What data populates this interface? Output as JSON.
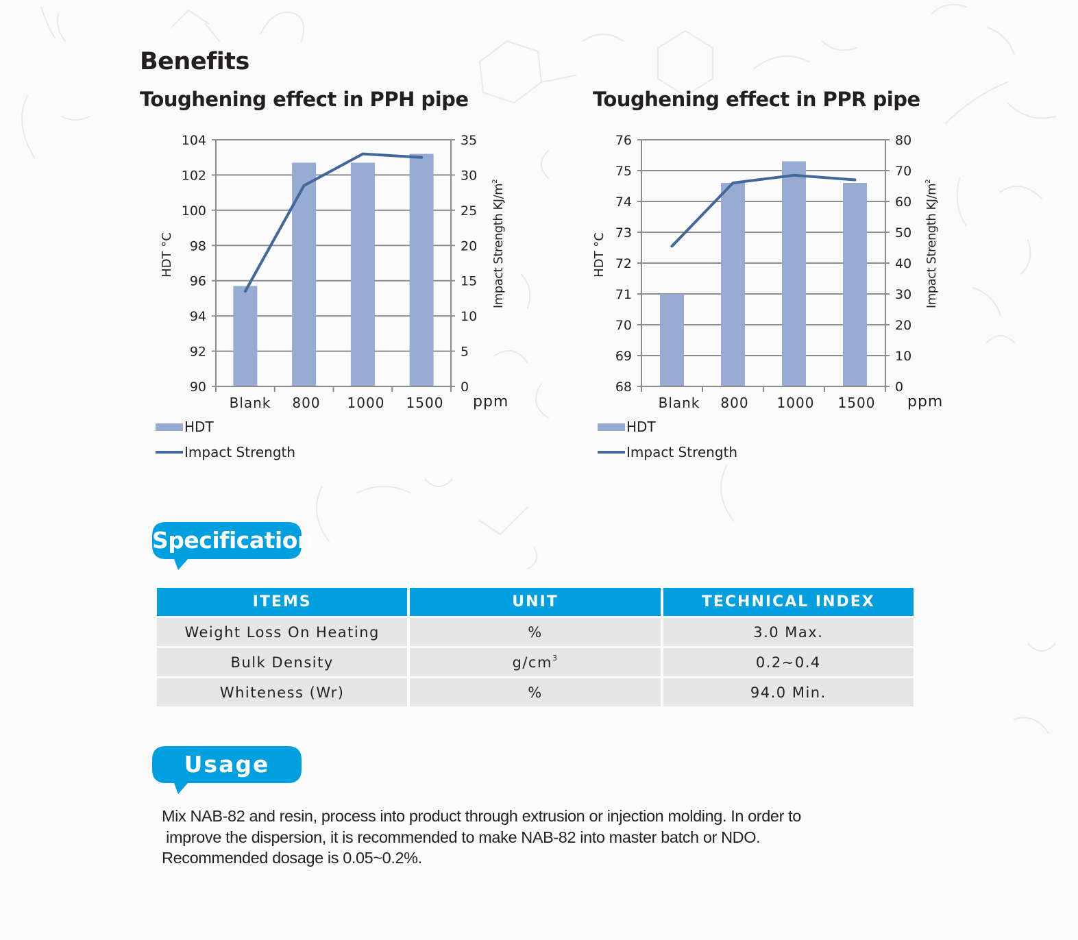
{
  "benefits": {
    "title": "Benefits"
  },
  "chart_data": [
    {
      "type": "bar+line",
      "title": "Toughening effect in PPH pipe",
      "categories": [
        "Blank",
        "800",
        "1000",
        "1500"
      ],
      "xunit": "ppm",
      "ylabel": "HDT °C",
      "y2label": "Impact Strength  KJ/m",
      "y2label_sup": "2",
      "ylim": [
        90,
        104
      ],
      "y2lim": [
        0,
        35
      ],
      "yticks": [
        "90",
        "92",
        "94",
        "96",
        "98",
        "100",
        "102",
        "104"
      ],
      "y2ticks": [
        "0",
        "5",
        "10",
        "15",
        "20",
        "25",
        "30",
        "35"
      ],
      "series": [
        {
          "name": "HDT",
          "type": "bar",
          "axis": "left",
          "values": [
            95.7,
            102.7,
            102.7,
            103.2
          ]
        },
        {
          "name": "Impact Strength",
          "type": "line",
          "axis": "right",
          "values": [
            13.5,
            28.5,
            33.0,
            32.5
          ]
        }
      ],
      "grid": true,
      "legend": "bottom-left"
    },
    {
      "type": "bar+line",
      "title": "Toughening effect in PPR pipe",
      "categories": [
        "Blank",
        "800",
        "1000",
        "1500"
      ],
      "xunit": "ppm",
      "ylabel": "HDT °C",
      "y2label": "Impact Strength  KJ/m",
      "y2label_sup": "2",
      "ylim": [
        68,
        76
      ],
      "y2lim": [
        0,
        80
      ],
      "yticks": [
        "68",
        "69",
        "70",
        "71",
        "72",
        "73",
        "74",
        "75",
        "76"
      ],
      "y2ticks": [
        "0",
        "10",
        "20",
        "30",
        "40",
        "50",
        "60",
        "70",
        "80"
      ],
      "series": [
        {
          "name": "HDT",
          "type": "bar",
          "axis": "left",
          "values": [
            71.0,
            74.6,
            75.3,
            74.6
          ]
        },
        {
          "name": "Impact Strength",
          "type": "line",
          "axis": "right",
          "values": [
            45.5,
            66.0,
            68.5,
            67.0
          ]
        }
      ],
      "grid": true,
      "legend": "bottom-left"
    }
  ],
  "colors": {
    "bar": "#97abd3",
    "line": "#41679b",
    "grid": "#8c8c8c",
    "accent": "#00a0e0",
    "cell": "#e6e6e6"
  },
  "specification": {
    "badge": "Specification",
    "headers": [
      "ITEMS",
      "UNIT",
      "TECHNICAL INDEX"
    ],
    "rows": [
      {
        "item": "Weight Loss On Heating",
        "unit": "%",
        "unit_sup": "",
        "index": "3.0 Max."
      },
      {
        "item": "Bulk Density",
        "unit": "g/cm",
        "unit_sup": "3",
        "index": "0.2~0.4"
      },
      {
        "item": "Whiteness (Wr)",
        "unit": "%",
        "unit_sup": "",
        "index": "94.0 Min."
      }
    ]
  },
  "usage": {
    "badge": "Usage",
    "lines": [
      "Mix NAB-82 and resin, process into product through extrusion or injection molding. In order to",
      " improve the dispersion, it is recommended to make NAB-82 into master batch or NDO.",
      "Recommended dosage is 0.05~0.2%."
    ]
  }
}
